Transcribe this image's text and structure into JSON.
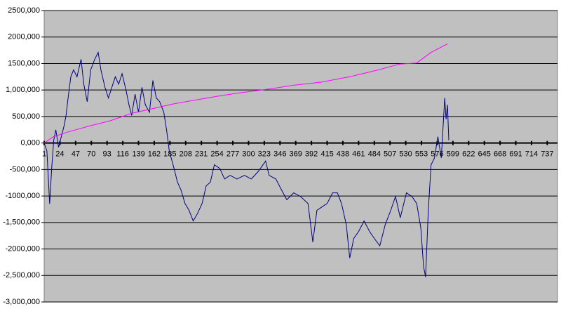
{
  "chart_data": {
    "type": "line",
    "xlim": [
      1,
      752
    ],
    "xticks": [
      1,
      24,
      47,
      70,
      93,
      116,
      139,
      162,
      185,
      208,
      231,
      254,
      277,
      300,
      323,
      346,
      369,
      392,
      415,
      438,
      461,
      484,
      507,
      530,
      553,
      576,
      599,
      622,
      645,
      668,
      691,
      714,
      737
    ],
    "ylim": [
      -3000000,
      2500000
    ],
    "yticks": [
      {
        "value": 2500000,
        "label": "2500,000"
      },
      {
        "value": 2000000,
        "label": "2000,000"
      },
      {
        "value": 1500000,
        "label": "1500,000"
      },
      {
        "value": 1000000,
        "label": "1,000,000"
      },
      {
        "value": 500000,
        "label": "500,000"
      },
      {
        "value": 0,
        "label": "0,000"
      },
      {
        "value": -500000,
        "label": "-500,000"
      },
      {
        "value": -1000000,
        "label": "-1000,000"
      },
      {
        "value": -1500000,
        "label": "-1,500,000"
      },
      {
        "value": -2000000,
        "label": "-2000,000"
      },
      {
        "value": -2500000,
        "label": "-2,500,000"
      },
      {
        "value": -3000000,
        "label": "-3,000,000"
      }
    ],
    "grid": true,
    "series": [
      {
        "color": "#000080",
        "x": [
          1,
          5,
          9,
          12,
          15,
          18,
          22,
          26,
          30,
          33,
          36,
          40,
          44,
          49,
          55,
          59,
          64,
          69,
          75,
          80,
          84,
          90,
          95,
          100,
          105,
          110,
          115,
          121,
          125,
          129,
          134,
          139,
          144,
          149,
          155,
          160,
          165,
          170,
          176,
          180,
          184,
          191,
          196,
          201,
          207,
          213,
          219,
          225,
          232,
          238,
          244,
          250,
          258,
          265,
          273,
          283,
          294,
          304,
          314,
          325,
          330,
          340,
          348,
          356,
          366,
          376,
          387,
          394,
          400,
          407,
          415,
          423,
          430,
          436,
          443,
          448,
          454,
          461,
          469,
          477,
          484,
          492,
          500,
          508,
          515,
          522,
          531,
          539,
          546,
          552,
          556,
          559,
          563,
          567,
          572,
          577,
          582,
          587,
          589,
          591,
          593
        ],
        "values": [
          0,
          -150000,
          -1150000,
          -480000,
          50000,
          250000,
          -80000,
          120000,
          320000,
          520000,
          850000,
          1250000,
          1380000,
          1250000,
          1580000,
          1110000,
          780000,
          1380000,
          1580000,
          1710000,
          1380000,
          1050000,
          850000,
          1050000,
          1250000,
          1110000,
          1310000,
          980000,
          720000,
          520000,
          920000,
          580000,
          1050000,
          720000,
          580000,
          1180000,
          850000,
          780000,
          580000,
          250000,
          -150000,
          -480000,
          -740000,
          -880000,
          -1140000,
          -1270000,
          -1470000,
          -1340000,
          -1140000,
          -810000,
          -740000,
          -410000,
          -480000,
          -680000,
          -610000,
          -680000,
          -610000,
          -680000,
          -540000,
          -340000,
          -610000,
          -680000,
          -880000,
          -1070000,
          -940000,
          -1010000,
          -1140000,
          -1870000,
          -1270000,
          -1210000,
          -1140000,
          -940000,
          -940000,
          -1140000,
          -1540000,
          -2170000,
          -1800000,
          -1670000,
          -1470000,
          -1670000,
          -1800000,
          -1940000,
          -1540000,
          -1270000,
          -1010000,
          -1410000,
          -940000,
          -1010000,
          -1140000,
          -1600000,
          -2330000,
          -2530000,
          -1270000,
          -410000,
          -280000,
          120000,
          -280000,
          850000,
          450000,
          720000,
          50000
        ]
      },
      {
        "color": "#ff00ff",
        "x": [
          1,
          15,
          36,
          67,
          98,
          129,
          160,
          191,
          222,
          253,
          283,
          325,
          366,
          407,
          448,
          490,
          521,
          546,
          567,
          591
        ],
        "values": [
          0,
          120000,
          210000,
          320000,
          420000,
          560000,
          650000,
          740000,
          810000,
          880000,
          940000,
          1010000,
          1090000,
          1150000,
          1250000,
          1380000,
          1490000,
          1510000,
          1710000,
          1870000
        ]
      }
    ]
  }
}
